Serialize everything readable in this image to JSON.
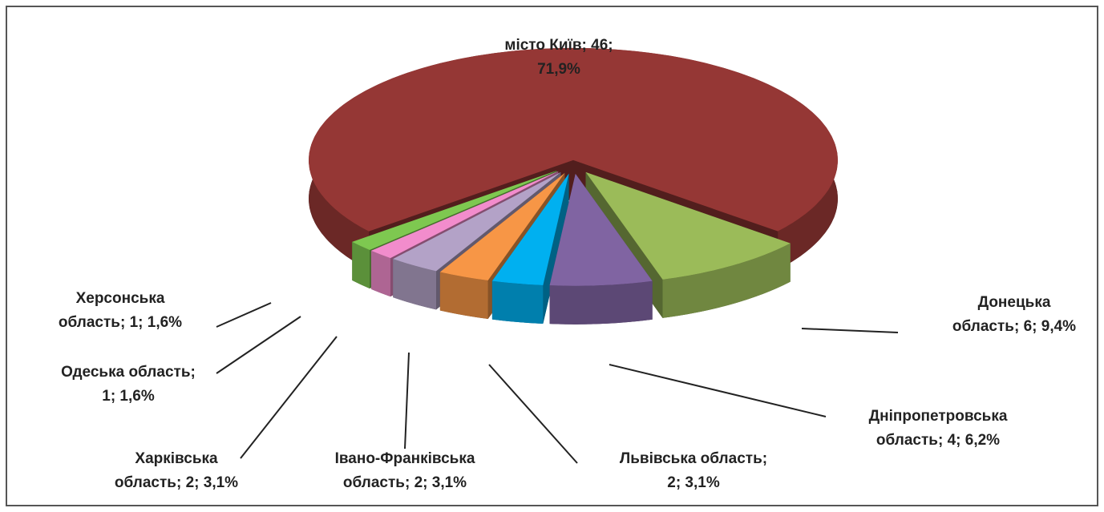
{
  "chart_data": {
    "type": "pie",
    "values": [
      46,
      6,
      4,
      2,
      2,
      2,
      1,
      1
    ],
    "value_labels": [
      [
        "місто Київ; 46;",
        "71,9%"
      ],
      [
        "Донецька",
        "область; 6; 9,4%"
      ],
      [
        "Дніпропетровська",
        "область; 4; 6,2%"
      ],
      [
        "Львівська область;",
        "2; 3,1%"
      ],
      [
        "Івано-Франківська",
        "область; 2; 3,1%"
      ],
      [
        "Харківська",
        "область; 2; 3,1%"
      ],
      [
        "Одеська область;",
        "1; 1,6%"
      ],
      [
        "Херсонська",
        "область; 1; 1,6%"
      ]
    ],
    "colors": [
      "#953735",
      "#9bbb59",
      "#8064a2",
      "#00b0f0",
      "#f79646",
      "#b3a2c7",
      "#f28ccc",
      "#7ec850"
    ]
  }
}
